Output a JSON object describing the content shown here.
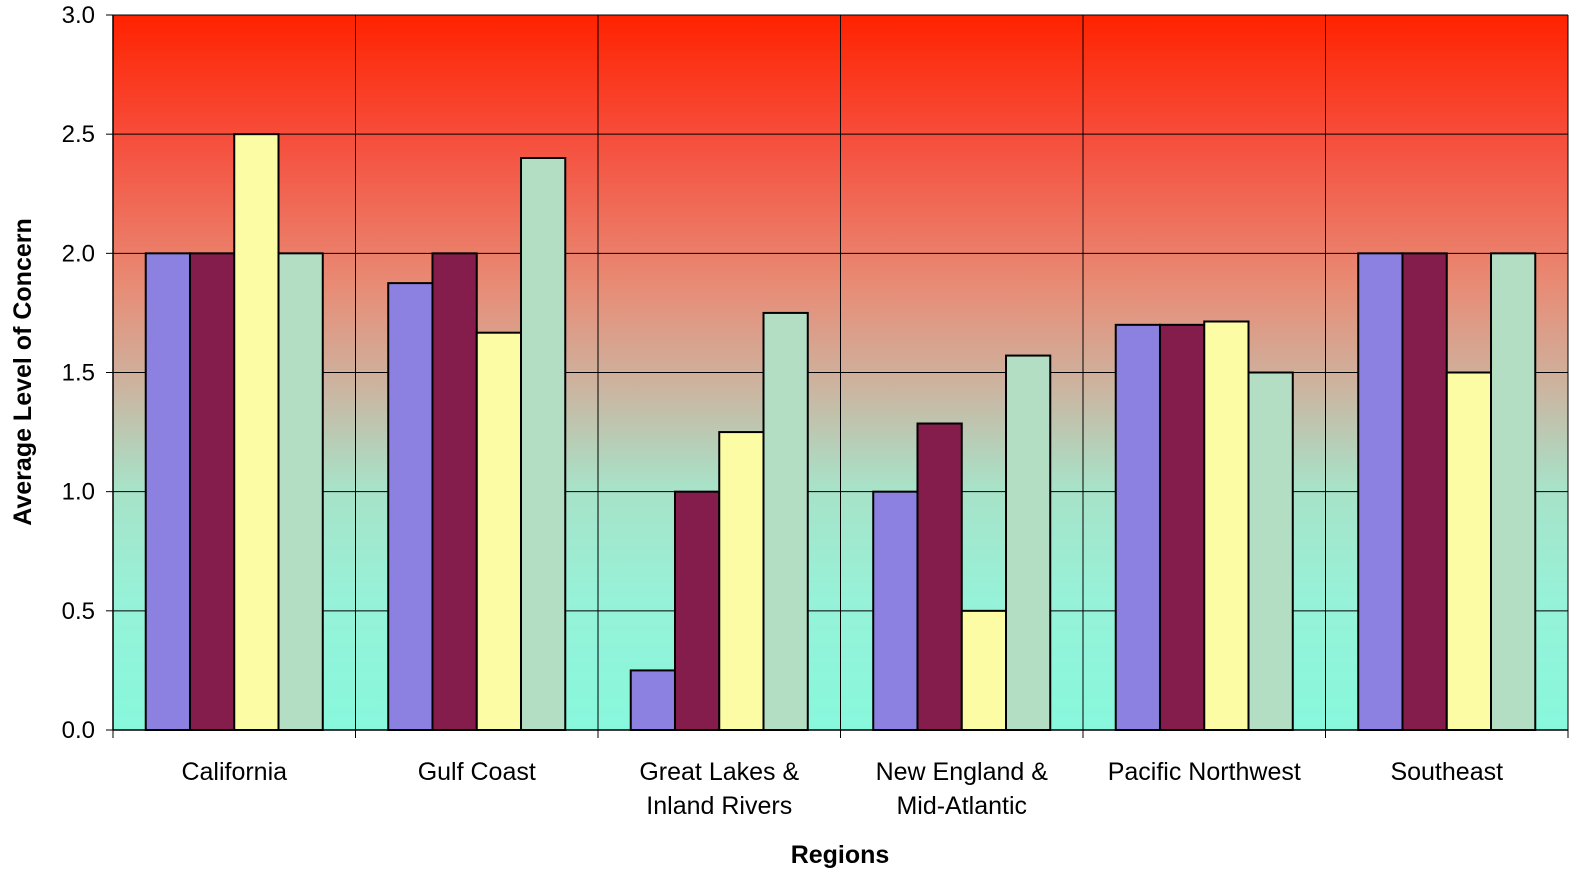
{
  "chart_data": {
    "type": "bar",
    "title": "",
    "xlabel": "Regions",
    "ylabel": "Average Level of Concern",
    "ylim": [
      0,
      3
    ],
    "yticks": [
      "0.0",
      "0.5",
      "1.0",
      "1.5",
      "2.0",
      "2.5",
      "3.0"
    ],
    "grid": true,
    "legend": "none",
    "background": "vertical gradient: red at top fading to aqua at bottom",
    "categories": [
      [
        "California"
      ],
      [
        "Gulf Coast"
      ],
      [
        "Great Lakes &",
        "Inland Rivers"
      ],
      [
        "New England &",
        "Mid-Atlantic"
      ],
      [
        "Pacific Northwest"
      ],
      [
        "Southeast"
      ]
    ],
    "series": [
      {
        "color": "#8C80E0",
        "values": [
          2.0,
          1.875,
          0.25,
          1.0,
          1.7,
          2.0
        ]
      },
      {
        "color": "#841C4C",
        "values": [
          2.0,
          2.0,
          1.0,
          1.286,
          1.7,
          2.0
        ]
      },
      {
        "color": "#FCFCA4",
        "values": [
          2.5,
          1.667,
          1.25,
          0.5,
          1.714,
          1.5
        ]
      },
      {
        "color": "#B4DEC4",
        "values": [
          2.0,
          2.4,
          1.75,
          1.571,
          1.5,
          2.0
        ]
      }
    ]
  }
}
